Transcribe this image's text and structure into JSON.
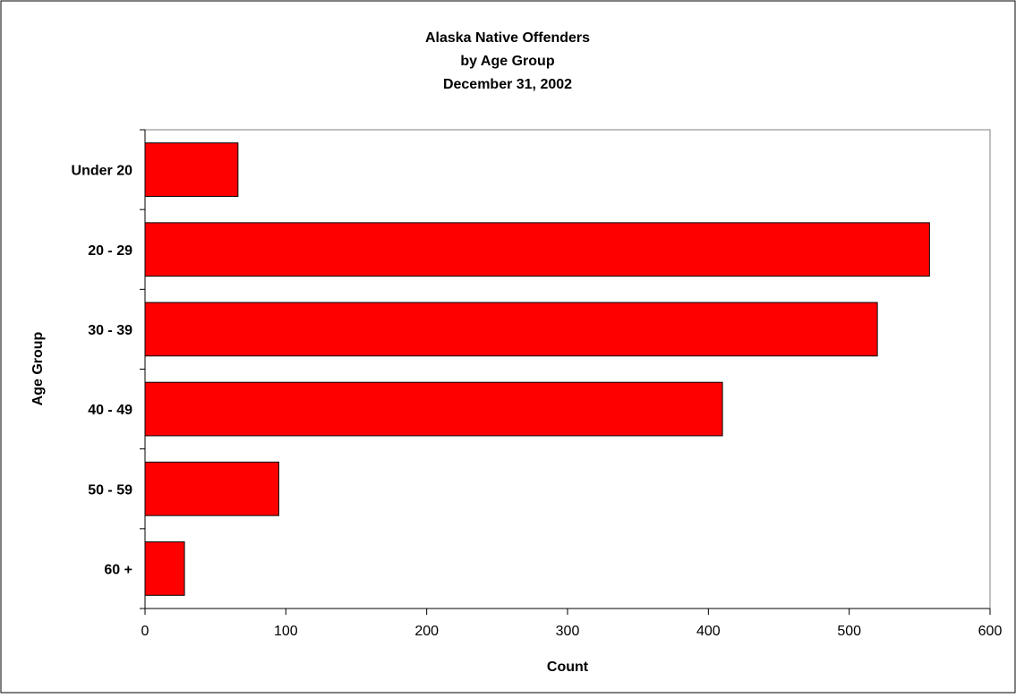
{
  "chart_data": {
    "type": "bar",
    "orientation": "horizontal",
    "title": "Alaska Native Offenders",
    "subtitle": "by Age Group",
    "date_line": "December 31, 2002",
    "categories": [
      "Under 20",
      "20 - 29",
      "30 - 39",
      "40 - 49",
      "50 - 59",
      "60 +"
    ],
    "values": [
      66,
      557,
      520,
      410,
      95,
      28
    ],
    "xlabel": "Count",
    "ylabel": "Age Group",
    "xlim": [
      0,
      600
    ],
    "xticks": [
      "0",
      "100",
      "200",
      "300",
      "400",
      "500",
      "600"
    ],
    "grid": false,
    "legend": "none",
    "bar_color": "#ff0000",
    "bar_edge_color": "#000000"
  }
}
